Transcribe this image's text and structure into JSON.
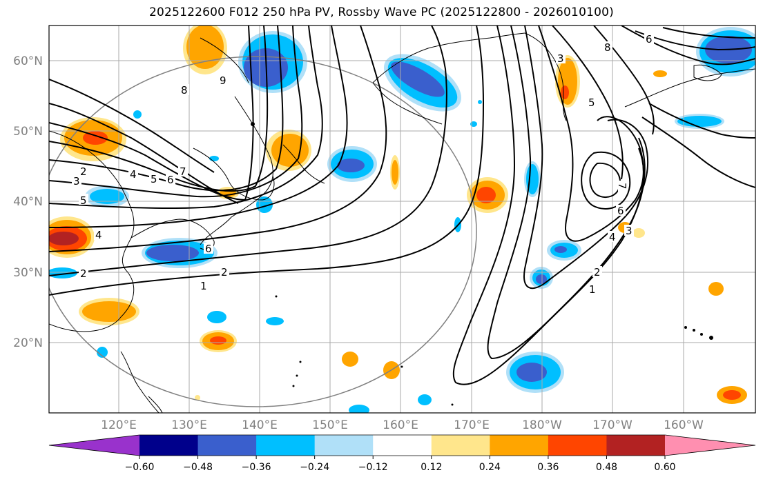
{
  "title": "2025122600 F012 250 hPa PV, Rossby Wave PC (2025122800 - 2026010100)",
  "lat_labels": [
    "60°N",
    "50°N",
    "40°N",
    "30°N",
    "20°N"
  ],
  "lon_labels": [
    "120°E",
    "130°E",
    "140°E",
    "150°E",
    "160°E",
    "170°E",
    "180°W",
    "170°W",
    "160°W"
  ],
  "colorbar": {
    "ticks": [
      "−0.60",
      "−0.48",
      "−0.36",
      "−0.24",
      "−0.12",
      "0.12",
      "0.24",
      "0.36",
      "0.48",
      "0.60"
    ],
    "colors": [
      "#9932cc",
      "#00008b",
      "#3a5fcd",
      "#00bfff",
      "#b0e0f8",
      "#ffffff",
      "#ffe68c",
      "#ffa500",
      "#ff4500",
      "#b22222",
      "#ff8fb0"
    ]
  },
  "contour_labels": [
    "9",
    "8",
    "7",
    "6",
    "5",
    "4",
    "3",
    "2",
    "1",
    "6",
    "5",
    "4",
    "3",
    "2",
    "1",
    "7",
    "6",
    "4",
    "3",
    "2",
    "1",
    "8",
    "6",
    "3",
    "5"
  ]
}
